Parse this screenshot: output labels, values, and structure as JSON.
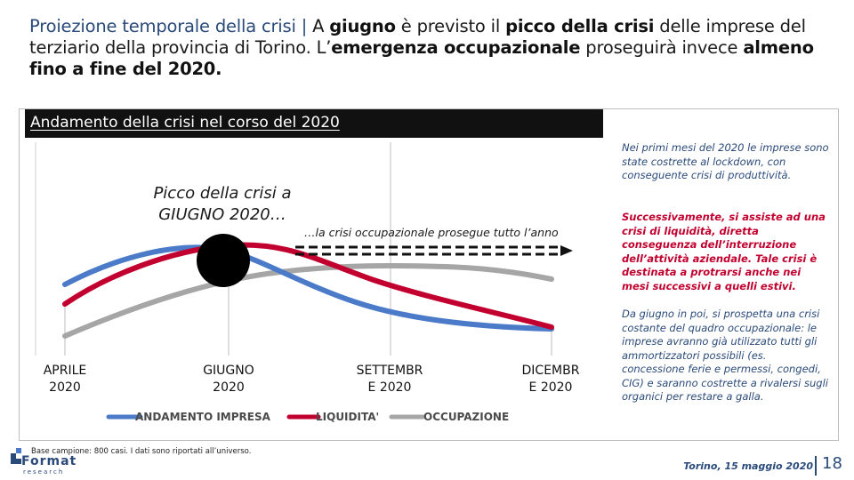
{
  "title": {
    "part1": "Proiezione temporale della crisi |",
    "part2": " A ",
    "part3": "giugno",
    "part4": " è previsto il ",
    "part5": "picco della crisi",
    "part6": " delle imprese del terziario della provincia di Torino. L’",
    "part7": "emergenza occupazionale",
    "part8": " proseguirà invece ",
    "part9": "almeno fino a fine del 2020."
  },
  "section": {
    "title": "Andamento della crisi nel corso del 2020"
  },
  "annotations": {
    "peak_line1": "Picco della crisi a",
    "peak_line2": "GIUGNO 2020…",
    "crisis_continues": "…la crisi occupazionale prosegue tutto l’anno"
  },
  "axis": {
    "aprile_1": "APRILE",
    "aprile_2": "2020",
    "giugno_1": "GIUGNO",
    "giugno_2": "2020",
    "settembre_1": "SETTEMBR",
    "settembre_2": "E 2020",
    "dicembre_1": "DICEMBR",
    "dicembre_2": "E 2020"
  },
  "legend": {
    "impresa": "ANDAMENTO IMPRESA",
    "liquidita": "LIQUIDITA'",
    "occupazione": "OCCUPAZIONE"
  },
  "notes": {
    "note1": "Nei primi mesi del 2020 le imprese sono state costrette al lockdown, con conseguente crisi di produttività.",
    "note2": "Successivamente, si assiste ad una crisi di liquidità, diretta conseguenza dell’interruzione dell’attività aziendale. Tale crisi è destinata a protrarsi anche nei mesi successivi a quelli estivi.",
    "note3": "Da giugno in poi, si prospetta una crisi costante del quadro occupazionale: le imprese avranno già utilizzato tutti gli ammortizzatori possibili (es. concessione ferie e permessi, congedi, CIG) e saranno costrette a rivalersi sugli organici per restare a galla."
  },
  "footer": {
    "sample_note": "Base campione: 800 casi. I dati sono riportati all’universo.",
    "logo_text": "Format",
    "logo_sub": "research",
    "date": "Torino, 15 maggio 2020",
    "page": "18"
  },
  "colors": {
    "impresa": "#4a7ac8",
    "liquidita": "#c2002f",
    "occupazione": "#a6a6a6",
    "title_accent": "#2a4a7a"
  }
}
